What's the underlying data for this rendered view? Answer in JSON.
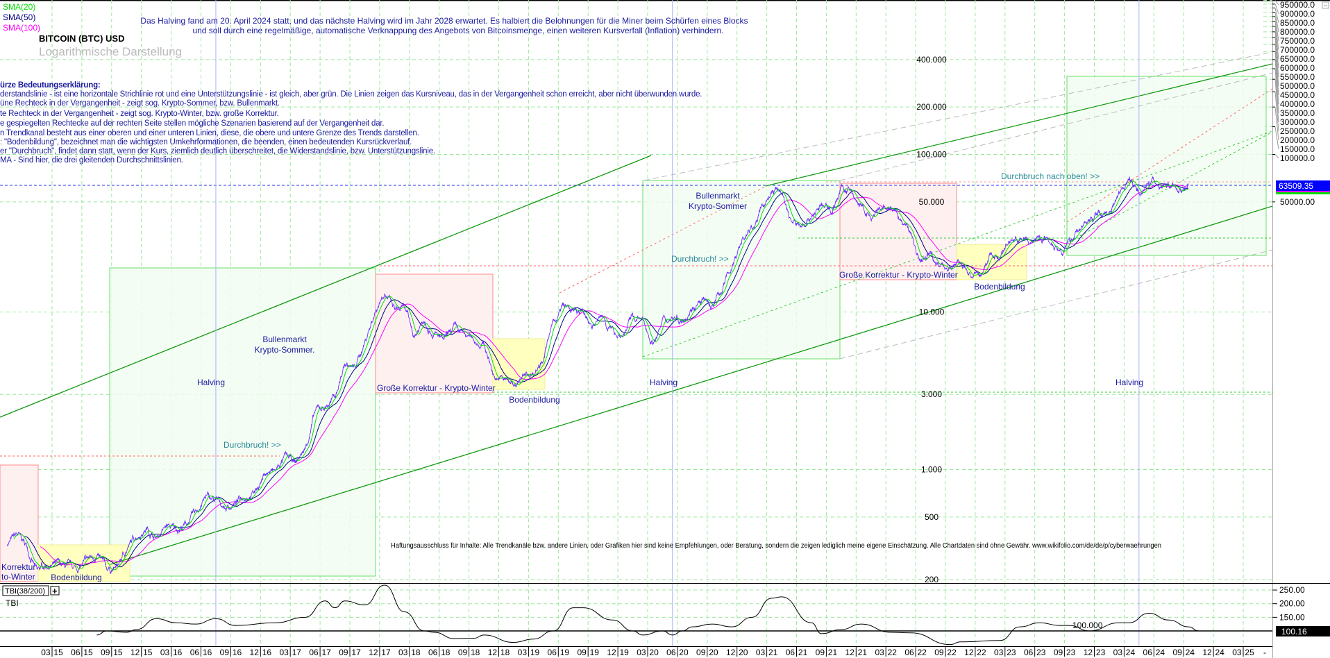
{
  "header": {
    "line1": "Das Halving fand am 20. April 2024 statt, und das nächste Halving wird im Jahr 2028 erwartet. Es halbiert die Belohnungen für die Miner beim Schürfen eines Blocks",
    "line2": "und soll durch eine regelmäßige, automatische Verknappung des Angebots von Bitcoinsmenge, einen weiteren Kursverfall (Inflation) verhindern.",
    "title": "BITCOIN (BTC) USD",
    "subtitle": "Logarithmische Darstellung"
  },
  "indicators": [
    {
      "label": "SMA(20)",
      "color": "#00dd00"
    },
    {
      "label": "SMA(50)",
      "color": "#000080"
    },
    {
      "label": "SMA(100)",
      "color": "#ff00ff"
    }
  ],
  "legend": {
    "heading": "ürze Bedeutungserklärung:",
    "lines": [
      "derstandslinie - ist eine horizontale Strichlinie rot und eine Unterstützungslinie - ist gleich, aber grün. Die Linien zeigen das Kursniveau, das in der Vergangenheit schon erreicht, aber nicht überwunden wurde.",
      "üne Rechteck in der Vergangenheit - zeigt sog. Krypto-Sommer, bzw. Bullenmarkt.",
      "te Rechteck in der Vergangenheit - zeigt sog. Krypto-Winter, bzw. große Korrektur.",
      "e gespiegelten Rechtecke auf der rechten Seite stellen mögliche Szenarien basierend auf der Vergangenheit dar.",
      "n Trendkanal besteht aus einer oberen und einer unteren Linien, diese, die obere und untere Grenze des Trends darstellen.",
      ": \"Bodenbildung\", bezeichnet man die wichtigsten Umkehrformationen, die beenden, einen bedeutenden Kursrückverlauf.",
      "er \"Durchbruch\", findet dann statt, wenn der Kurs, ziemlich deutlich überschreitet, die Widerstandslinie, bzw. Unterstützungslinie.",
      "MA - Sind hier, die drei gleitenden Durchschnittslinien."
    ]
  },
  "annotations": {
    "halving": "Halving",
    "bull1_a": "Bullenmarkt",
    "bull1_b": "Krypto-Sommer.",
    "bull2_a": "Bullenmarkt",
    "bull2_b": "Krypto-Sommer",
    "breakout": "Durchbruch! >>",
    "breakout_up": "Durchbruch nach oben! >>",
    "correction": "Große Korrektur - Krypto-Winter",
    "bottoming": "Bodenbildung",
    "left_a": "Korrektur",
    "left_b": "to-Winter",
    "disclaimer": "Haftungsausschluss für Inhalte: Alle Trendkanäle bzw. andere Linien, oder Grafiken hier sind keine Empfehlungen, oder Beratung, sondern die zeigen lediglich meine eigene Einschätzung. Alle Chartdaten sind ohne Gewähr. www.wikifolio.com/de/de/p/cyberwaehrungen"
  },
  "chart_data": [
    {
      "type": "line",
      "title": "BITCOIN (BTC) USD",
      "scale": "log",
      "grid": true,
      "current_value": "63509.35",
      "inner_tick_labels": [
        "400.000",
        "200.000",
        "100.000",
        "50.000",
        "10.000",
        "3.000",
        "1.000",
        "500",
        "200"
      ],
      "inner_tick_values": [
        400000,
        200000,
        100000,
        50000,
        10000,
        3000,
        1000,
        500,
        200
      ],
      "right_axis_labels": [
        "950000.0",
        "900000.0",
        "850000.0",
        "800000.0",
        "750000.0",
        "700000.0",
        "650000.0",
        "600000.0",
        "550000.0",
        "500000.0",
        "450000.0",
        "400000.0",
        "350000.0",
        "300000.0",
        "250000.0",
        "200000.0",
        "150000.0",
        "100000.0",
        "50000.00"
      ],
      "right_axis_values": [
        950000,
        900000,
        850000,
        800000,
        750000,
        700000,
        650000,
        600000,
        550000,
        500000,
        450000,
        400000,
        350000,
        300000,
        250000,
        200000,
        150000,
        100000,
        50000
      ],
      "halvings": [
        "2016-07",
        "2020-05",
        "2024-04"
      ],
      "series": [
        {
          "name": "BTC",
          "color": "#6a2cff",
          "points": [
            [
              "2014-10",
              340
            ],
            [
              "2014-11",
              380
            ],
            [
              "2014-12",
              320
            ],
            [
              "2015-01",
              220
            ],
            [
              "2015-02",
              250
            ],
            [
              "2015-03",
              245
            ],
            [
              "2015-04",
              235
            ],
            [
              "2015-05",
              230
            ],
            [
              "2015-06",
              260
            ],
            [
              "2015-07",
              285
            ],
            [
              "2015-08",
              230
            ],
            [
              "2015-09",
              235
            ],
            [
              "2015-10",
              310
            ],
            [
              "2015-11",
              380
            ],
            [
              "2015-12",
              430
            ],
            [
              "2016-01",
              370
            ],
            [
              "2016-02",
              435
            ],
            [
              "2016-03",
              415
            ],
            [
              "2016-04",
              450
            ],
            [
              "2016-05",
              530
            ],
            [
              "2016-06",
              670
            ],
            [
              "2016-07",
              625
            ],
            [
              "2016-08",
              575
            ],
            [
              "2016-09",
              610
            ],
            [
              "2016-10",
              700
            ],
            [
              "2016-11",
              740
            ],
            [
              "2016-12",
              960
            ],
            [
              "2017-01",
              970
            ],
            [
              "2017-02",
              1190
            ],
            [
              "2017-03",
              1080
            ],
            [
              "2017-04",
              1350
            ],
            [
              "2017-05",
              2300
            ],
            [
              "2017-06",
              2500
            ],
            [
              "2017-07",
              2870
            ],
            [
              "2017-08",
              4700
            ],
            [
              "2017-09",
              4340
            ],
            [
              "2017-10",
              6450
            ],
            [
              "2017-11",
              10000
            ],
            [
              "2017-12",
              14000
            ],
            [
              "2018-01",
              10200
            ],
            [
              "2018-02",
              10300
            ],
            [
              "2018-03",
              6900
            ],
            [
              "2018-04",
              9200
            ],
            [
              "2018-05",
              7500
            ],
            [
              "2018-06",
              6400
            ],
            [
              "2018-07",
              7700
            ],
            [
              "2018-08",
              7000
            ],
            [
              "2018-09",
              6600
            ],
            [
              "2018-10",
              6300
            ],
            [
              "2018-11",
              4000
            ],
            [
              "2018-12",
              3700
            ],
            [
              "2019-01",
              3450
            ],
            [
              "2019-02",
              3800
            ],
            [
              "2019-03",
              4100
            ],
            [
              "2019-04",
              5300
            ],
            [
              "2019-05",
              8500
            ],
            [
              "2019-06",
              10800
            ],
            [
              "2019-07",
              10000
            ],
            [
              "2019-08",
              9600
            ],
            [
              "2019-09",
              8300
            ],
            [
              "2019-10",
              9200
            ],
            [
              "2019-11",
              7500
            ],
            [
              "2019-12",
              7200
            ],
            [
              "2020-01",
              9350
            ],
            [
              "2020-02",
              8600
            ],
            [
              "2020-03",
              6400
            ],
            [
              "2020-04",
              8600
            ],
            [
              "2020-05",
              9450
            ],
            [
              "2020-06",
              9150
            ],
            [
              "2020-07",
              11300
            ],
            [
              "2020-08",
              11650
            ],
            [
              "2020-09",
              10800
            ],
            [
              "2020-10",
              13800
            ],
            [
              "2020-11",
              19700
            ],
            [
              "2020-12",
              29000
            ],
            [
              "2021-01",
              33100
            ],
            [
              "2021-02",
              45200
            ],
            [
              "2021-03",
              58800
            ],
            [
              "2021-04",
              57700
            ],
            [
              "2021-05",
              37300
            ],
            [
              "2021-06",
              35000
            ],
            [
              "2021-07",
              41500
            ],
            [
              "2021-08",
              47100
            ],
            [
              "2021-09",
              43800
            ],
            [
              "2021-10",
              61300
            ],
            [
              "2021-11",
              57000
            ],
            [
              "2021-12",
              46300
            ],
            [
              "2022-01",
              38500
            ],
            [
              "2022-02",
              43200
            ],
            [
              "2022-03",
              45500
            ],
            [
              "2022-04",
              37700
            ],
            [
              "2022-05",
              31800
            ],
            [
              "2022-06",
              19900
            ],
            [
              "2022-07",
              23300
            ],
            [
              "2022-08",
              20000
            ],
            [
              "2022-09",
              19400
            ],
            [
              "2022-10",
              20500
            ],
            [
              "2022-11",
              17200
            ],
            [
              "2022-12",
              16500
            ],
            [
              "2023-01",
              23100
            ],
            [
              "2023-02",
              23100
            ],
            [
              "2023-03",
              28500
            ],
            [
              "2023-04",
              29200
            ],
            [
              "2023-05",
              27200
            ],
            [
              "2023-06",
              30500
            ],
            [
              "2023-07",
              29200
            ],
            [
              "2023-08",
              26000
            ],
            [
              "2023-09",
              27000
            ],
            [
              "2023-10",
              34500
            ],
            [
              "2023-11",
              37700
            ],
            [
              "2023-12",
              42300
            ],
            [
              "2024-01",
              42600
            ],
            [
              "2024-02",
              61200
            ],
            [
              "2024-03",
              71300
            ],
            [
              "2024-04",
              60600
            ],
            [
              "2024-05",
              67500
            ],
            [
              "2024-06",
              62700
            ],
            [
              "2024-07",
              64600
            ],
            [
              "2024-08",
              59000
            ],
            [
              "2024-09",
              63500
            ]
          ]
        },
        {
          "name": "SMA(20)",
          "color": "#00dd00",
          "window": 20
        },
        {
          "name": "SMA(50)",
          "color": "#000080",
          "window": 50
        },
        {
          "name": "SMA(100)",
          "color": "#ff00ff",
          "window": 100
        }
      ]
    },
    {
      "type": "line",
      "title": "TBI(38/200)",
      "series_label": "TBI",
      "reference_label": "100.000",
      "reference_value": 100,
      "current_value": "100.16",
      "axis_labels": [
        "250.00",
        "200.00",
        "150.00"
      ],
      "axis_values": [
        250,
        200,
        150
      ],
      "points": [
        [
          "2015-07",
          85
        ],
        [
          "2015-08",
          100
        ],
        [
          "2015-10",
          95
        ],
        [
          "2015-11",
          105
        ],
        [
          "2016-01",
          145
        ],
        [
          "2016-03",
          130
        ],
        [
          "2016-05",
          125
        ],
        [
          "2016-07",
          145
        ],
        [
          "2016-09",
          120
        ],
        [
          "2017-01",
          130
        ],
        [
          "2017-04",
          150
        ],
        [
          "2017-06",
          210
        ],
        [
          "2017-07",
          185
        ],
        [
          "2017-08",
          210
        ],
        [
          "2017-10",
          195
        ],
        [
          "2017-12",
          268
        ],
        [
          "2018-02",
          170
        ],
        [
          "2018-04",
          100
        ],
        [
          "2018-05",
          95
        ],
        [
          "2018-07",
          72
        ],
        [
          "2018-09",
          73
        ],
        [
          "2018-10",
          85
        ],
        [
          "2019-01",
          58
        ],
        [
          "2019-03",
          70
        ],
        [
          "2019-05",
          100
        ],
        [
          "2019-07",
          185
        ],
        [
          "2019-08",
          185
        ],
        [
          "2019-11",
          140
        ],
        [
          "2020-01",
          100
        ],
        [
          "2020-02",
          85
        ],
        [
          "2020-04",
          100
        ],
        [
          "2020-05",
          85
        ],
        [
          "2020-06",
          100
        ],
        [
          "2020-07",
          115
        ],
        [
          "2020-09",
          125
        ],
        [
          "2020-11",
          115
        ],
        [
          "2021-01",
          150
        ],
        [
          "2021-03",
          220
        ],
        [
          "2021-04",
          225
        ],
        [
          "2021-07",
          130
        ],
        [
          "2021-08",
          90
        ],
        [
          "2021-10",
          105
        ],
        [
          "2021-12",
          125
        ],
        [
          "2022-03",
          95
        ],
        [
          "2022-05",
          93
        ],
        [
          "2022-09",
          50
        ],
        [
          "2022-10",
          60
        ],
        [
          "2023-02",
          65
        ],
        [
          "2023-04",
          115
        ],
        [
          "2023-06",
          130
        ],
        [
          "2023-08",
          120
        ],
        [
          "2023-09",
          120
        ],
        [
          "2023-11",
          100
        ],
        [
          "2024-02",
          130
        ],
        [
          "2024-03",
          130
        ],
        [
          "2024-05",
          165
        ],
        [
          "2024-07",
          140
        ],
        [
          "2024-09",
          115
        ],
        [
          "2024-10",
          100
        ]
      ]
    }
  ],
  "x_axis": {
    "labels": [
      "03 15",
      "06 15",
      "09 15",
      "12 15",
      "03 16",
      "06 16",
      "09 16",
      "12 16",
      "03 17",
      "06 17",
      "09 17",
      "12 17",
      "03 18",
      "06 18",
      "09 18",
      "12 18",
      "03 19",
      "06 19",
      "09 19",
      "12 19",
      "03 20",
      "06 20",
      "09 20",
      "12 20",
      "03 21",
      "06 21",
      "09 21",
      "12 21",
      "03 22",
      "06 22",
      "09 22",
      "12 22",
      "03 23",
      "06 23",
      "09 23",
      "12 23",
      "03 24",
      "06 24",
      "09 24",
      "12 24",
      "03 25"
    ],
    "end_marker": "-"
  }
}
